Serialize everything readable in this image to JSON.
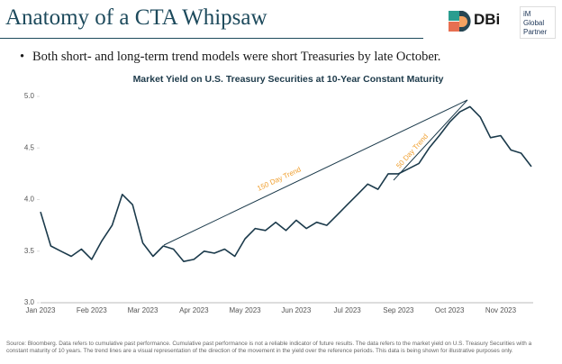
{
  "header": {
    "title": "Anatomy of a CTA Whipsaw",
    "logo": "DBi",
    "partner": [
      "iM",
      "Global",
      "Partner"
    ]
  },
  "bullet": "Both short- and long-term trend models were short Treasuries by late October.",
  "chart_data": {
    "type": "line",
    "title": "Market Yield on U.S. Treasury Securities at 10-Year Constant Maturity",
    "categories": [
      "Jan 2023",
      null,
      null,
      null,
      null,
      "Feb 2023",
      null,
      null,
      null,
      null,
      "Mar 2023",
      null,
      null,
      null,
      null,
      "Apr 2023",
      null,
      null,
      null,
      null,
      "May 2023",
      null,
      null,
      null,
      null,
      "Jun 2023",
      null,
      null,
      null,
      null,
      "Jul 2023",
      null,
      null,
      null,
      null,
      "Sep 2023",
      null,
      null,
      null,
      null,
      "Oct 2023",
      null,
      null,
      null,
      null,
      "Nov 2023",
      null,
      null,
      null
    ],
    "values": [
      3.88,
      3.55,
      3.5,
      3.45,
      3.52,
      3.42,
      3.6,
      3.75,
      4.05,
      3.95,
      3.58,
      3.45,
      3.55,
      3.52,
      3.4,
      3.42,
      3.5,
      3.48,
      3.52,
      3.45,
      3.62,
      3.72,
      3.7,
      3.78,
      3.7,
      3.8,
      3.72,
      3.78,
      3.75,
      3.85,
      3.95,
      4.05,
      4.15,
      4.1,
      4.25,
      4.25,
      4.3,
      4.35,
      4.5,
      4.62,
      4.75,
      4.85,
      4.9,
      4.8,
      4.6,
      4.62,
      4.48,
      4.45,
      4.32
    ],
    "color": "#1b3a4b",
    "ylim": [
      3,
      5
    ],
    "yticks": [
      {
        "value": 3,
        "label": "3.0"
      },
      {
        "value": 3.5,
        "label": "3.5"
      },
      {
        "value": 4,
        "label": "4.0"
      },
      {
        "value": 4.5,
        "label": "4.5"
      },
      {
        "value": 5,
        "label": "5.0"
      }
    ],
    "annotations": [
      "150 Day Trend",
      "50 Day Trend"
    ],
    "annotation_color": "#f0a030"
  },
  "footer": "Source: Bloomberg. Data refers to cumulative past performance. Cumulative past performance is not a reliable indicator of future results. The data refers to the market yield on U.S. Treasury Securities with a constant maturity of 10 years. The trend lines are a visual representation of the direction of the movement in the yield over the reference periods. This data is being shown for illustrative purposes only."
}
